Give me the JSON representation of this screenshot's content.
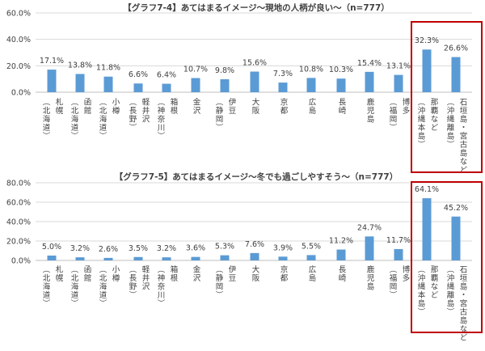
{
  "chart_data": [
    {
      "type": "bar",
      "title": "【グラフ7-4】あてはまるイメージ～現地の人柄が良い～（n=777）",
      "ylim": [
        0,
        60
      ],
      "yticks": [
        "0.0%",
        "20.0%",
        "40.0%",
        "60.0%"
      ],
      "ytick_values": [
        0,
        20,
        40,
        60
      ],
      "grid": true,
      "bar_color": "#5b9bd5",
      "highlight_color": "#c00000",
      "highlight_categories": [
        13,
        14
      ],
      "categories": [
        {
          "main": "札幌",
          "sub": "（北海道）"
        },
        {
          "main": "函館",
          "sub": "（北海道）"
        },
        {
          "main": "小樽",
          "sub": "（北海道）"
        },
        {
          "main": "軽井沢",
          "sub": "（長野）"
        },
        {
          "main": "箱根",
          "sub": "（神奈川）"
        },
        {
          "main": "金沢",
          "sub": ""
        },
        {
          "main": "伊豆",
          "sub": "（静岡）"
        },
        {
          "main": "大阪",
          "sub": ""
        },
        {
          "main": "京都",
          "sub": ""
        },
        {
          "main": "広島",
          "sub": ""
        },
        {
          "main": "長崎",
          "sub": ""
        },
        {
          "main": "鹿児島",
          "sub": ""
        },
        {
          "main": "博多",
          "sub": "（福岡）"
        },
        {
          "main": "那覇など",
          "sub": "（沖縄本島）"
        },
        {
          "main": "石垣島・宮古島など",
          "sub": "（沖縄離島）"
        }
      ],
      "values": [
        17.1,
        13.8,
        11.8,
        6.6,
        6.4,
        10.7,
        9.8,
        15.6,
        7.3,
        10.8,
        10.3,
        15.4,
        13.1,
        32.3,
        26.6
      ],
      "labels": [
        "17.1%",
        "13.8%",
        "11.8%",
        "6.6%",
        "6.4%",
        "10.7%",
        "9.8%",
        "15.6%",
        "7.3%",
        "10.8%",
        "10.3%",
        "15.4%",
        "13.1%",
        "32.3%",
        "26.6%"
      ]
    },
    {
      "type": "bar",
      "title": "【グラフ7-5】あてはまるイメージ～冬でも過ごしやすそう～（n=777）",
      "ylim": [
        0,
        80
      ],
      "yticks": [
        "0.0%",
        "20.0%",
        "40.0%",
        "60.0%",
        "80.0%"
      ],
      "ytick_values": [
        0,
        20,
        40,
        60,
        80
      ],
      "grid": true,
      "bar_color": "#5b9bd5",
      "highlight_color": "#c00000",
      "highlight_categories": [
        13,
        14
      ],
      "categories": [
        {
          "main": "札幌",
          "sub": "（北海道）"
        },
        {
          "main": "函館",
          "sub": "（北海道）"
        },
        {
          "main": "小樽",
          "sub": "（北海道）"
        },
        {
          "main": "軽井沢",
          "sub": "（長野）"
        },
        {
          "main": "箱根",
          "sub": "（神奈川）"
        },
        {
          "main": "金沢",
          "sub": ""
        },
        {
          "main": "伊豆",
          "sub": "（静岡）"
        },
        {
          "main": "大阪",
          "sub": ""
        },
        {
          "main": "京都",
          "sub": ""
        },
        {
          "main": "広島",
          "sub": ""
        },
        {
          "main": "長崎",
          "sub": ""
        },
        {
          "main": "鹿児島",
          "sub": ""
        },
        {
          "main": "博多",
          "sub": "（福岡）"
        },
        {
          "main": "那覇など",
          "sub": "（沖縄本島）"
        },
        {
          "main": "石垣島・宮古島など",
          "sub": "（沖縄離島）"
        }
      ],
      "values": [
        5.0,
        3.2,
        2.6,
        3.5,
        3.2,
        3.6,
        5.3,
        7.6,
        3.9,
        5.5,
        11.2,
        24.7,
        11.7,
        64.1,
        45.2
      ],
      "labels": [
        "5.0%",
        "3.2%",
        "2.6%",
        "3.5%",
        "3.2%",
        "3.6%",
        "5.3%",
        "7.6%",
        "3.9%",
        "5.5%",
        "11.2%",
        "24.7%",
        "11.7%",
        "64.1%",
        "45.2%"
      ]
    }
  ]
}
